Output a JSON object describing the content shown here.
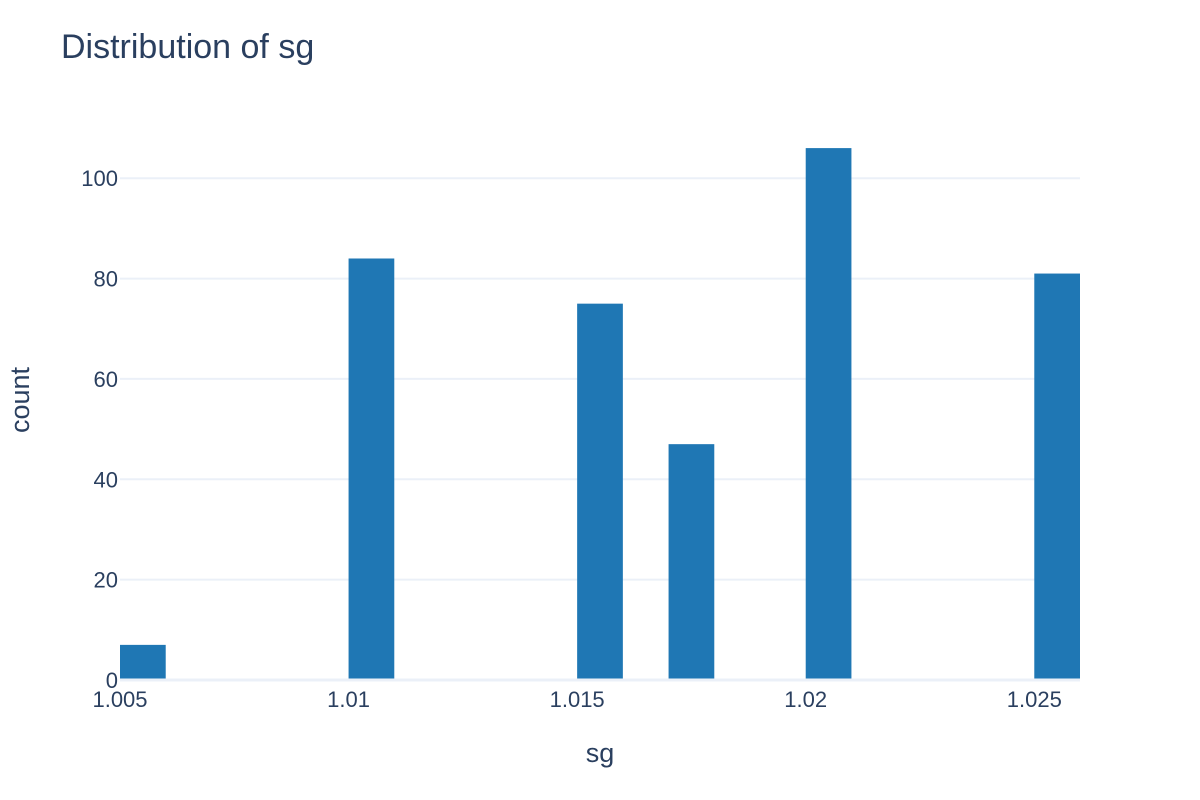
{
  "chart_data": {
    "type": "bar",
    "title": "Distribution of sg",
    "xlabel": "sg",
    "ylabel": "count",
    "bin_width": 0.001,
    "bins": [
      {
        "x": 1.005,
        "count": 7
      },
      {
        "x": 1.01,
        "count": 84
      },
      {
        "x": 1.015,
        "count": 75
      },
      {
        "x": 1.017,
        "count": 47
      },
      {
        "x": 1.02,
        "count": 106
      },
      {
        "x": 1.025,
        "count": 81
      }
    ],
    "xlim": [
      1.005,
      1.026
    ],
    "ylim": [
      0,
      111.6
    ],
    "x_ticks": [
      {
        "value": 1.005,
        "label": "1.005"
      },
      {
        "value": 1.01,
        "label": "1.01"
      },
      {
        "value": 1.015,
        "label": "1.015"
      },
      {
        "value": 1.02,
        "label": "1.02"
      },
      {
        "value": 1.025,
        "label": "1.025"
      }
    ],
    "y_ticks": [
      {
        "value": 0,
        "label": "0"
      },
      {
        "value": 20,
        "label": "20"
      },
      {
        "value": 40,
        "label": "40"
      },
      {
        "value": 60,
        "label": "60"
      },
      {
        "value": 80,
        "label": "80"
      },
      {
        "value": 100,
        "label": "100"
      }
    ],
    "grid": true,
    "legend": "none",
    "colors": {
      "bar": "#1f77b4",
      "grid": "#ebf0f8",
      "text": "#2a3f5f"
    }
  }
}
